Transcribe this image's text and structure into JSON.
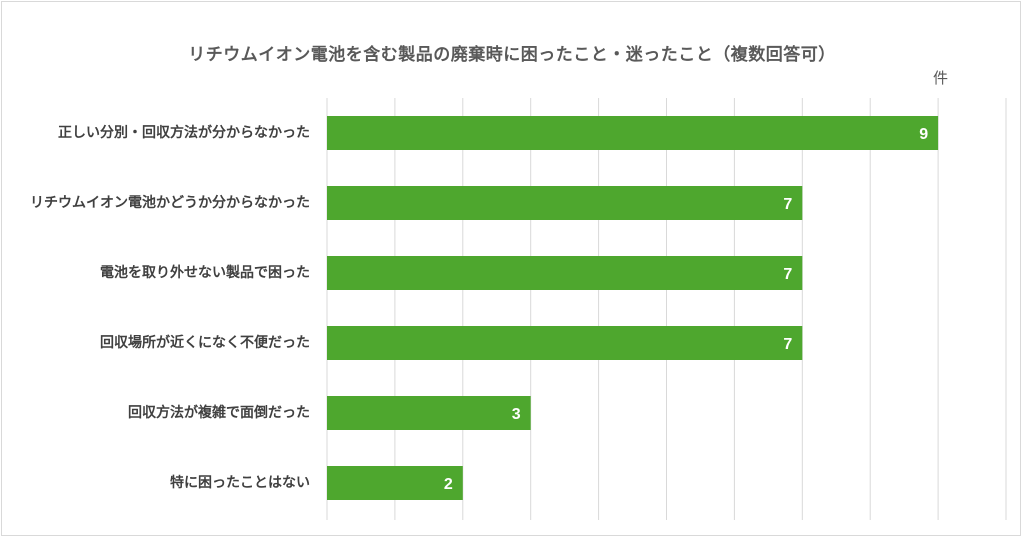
{
  "chart_data": {
    "type": "bar",
    "orientation": "horizontal",
    "title": "リチウムイオン電池を含む製品の廃棄時に困ったこと・迷ったこと（複数回答可）",
    "unit_label": "件",
    "categories": [
      "正しい分別・回収方法が分からなかった",
      "リチウムイオン電池かどうか分からなかった",
      "電池を取り外せない製品で困った",
      "回収場所が近くになく不便だった",
      "回収方法が複雑で面倒だった",
      "特に困ったことはない"
    ],
    "values": [
      9,
      7,
      7,
      7,
      3,
      2
    ],
    "xlim": [
      0,
      10
    ],
    "grid": true,
    "data_labels": true,
    "bar_color": "#4ea72e"
  }
}
